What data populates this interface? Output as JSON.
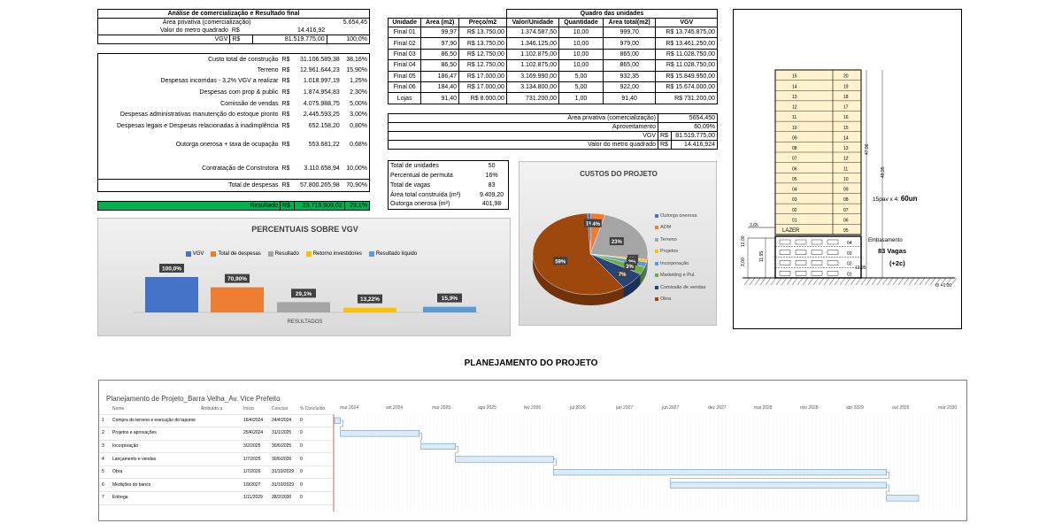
{
  "analysis": {
    "title": "Análise de comercialização e Resultado final",
    "area_label": "Área privativa (comercialização)",
    "area_value": "5.654,45",
    "vm2_label": "Valor do metro quadrado",
    "vm2_cur": "R$",
    "vm2_value": "14.416,92",
    "vgv_label": "VGV",
    "vgv_cur": "R$",
    "vgv_value": "81.519.775,00",
    "vgv_pct": "100,0%",
    "costs": [
      {
        "label": "Custo total de construção",
        "cur": "R$",
        "value": "31.106.589,38",
        "pct": "38,16%"
      },
      {
        "label": "Terreno",
        "cur": "R$",
        "value": "12.961.644,23",
        "pct": "15,90%"
      },
      {
        "label": "Despesas incorridas - 3,2% VGV a realizar",
        "cur": "R$",
        "value": "1.018.997,19",
        "pct": "1,25%"
      },
      {
        "label": "Despesas com prop & public",
        "cur": "R$",
        "value": "1.874.954,83",
        "pct": "2,30%"
      },
      {
        "label": "Comissão de vendas",
        "cur": "R$",
        "value": "4.075.988,75",
        "pct": "5,00%"
      },
      {
        "label": "Despesas administrativas manutenção do estoque pronto",
        "cur": "R$",
        "value": "2.445.593,25",
        "pct": "3,00%"
      },
      {
        "label": "Despesas legais e Despesas relacionadas à inadimplência",
        "cur": "R$",
        "value": "652.158,20",
        "pct": "0,80%"
      }
    ],
    "outorga_label": "Outorga onerosa + taxa de ocupação",
    "outorga_cur": "R$",
    "outorga_value": "553.681,22",
    "outorga_pct": "0,68%",
    "contrat_label": "Contratação de Construtora",
    "contrat_cur": "R$",
    "contrat_value": "3.110.658,94",
    "contrat_pct": "10,00%",
    "total_label": "Total de despesas",
    "total_cur": "R$",
    "total_value": "57.800.265,98",
    "total_pct": "70,90%",
    "result_label": "Resultado",
    "result_cur": "R$",
    "result_value": "23.719.509,02",
    "result_pct": "29,1%",
    "result_color": "#00b050"
  },
  "units": {
    "title": "Quadro das unidades",
    "headers": [
      "Unidade",
      "Área (m2)",
      "Preço/m2",
      "Valor/Unidade",
      "Quantidade",
      "Área total(m2)",
      "VGV"
    ],
    "rows": [
      {
        "unit": "Final 01",
        "area": "99,97",
        "price": "13.750,00",
        "value": "1.374.587,50",
        "qty": "10,00",
        "total_area": "999,70",
        "vgv": "13.745.875,00"
      },
      {
        "unit": "Final 02",
        "area": "97,90",
        "price": "13.750,00",
        "value": "1.346.125,00",
        "qty": "10,00",
        "total_area": "979,00",
        "vgv": "13.461.250,00"
      },
      {
        "unit": "Final 03",
        "area": "86,50",
        "price": "12.750,00",
        "value": "1.102.875,00",
        "qty": "10,00",
        "total_area": "865,00",
        "vgv": "11.028.750,00"
      },
      {
        "unit": "Final 04",
        "area": "86,50",
        "price": "12.750,00",
        "value": "1.102.875,00",
        "qty": "10,00",
        "total_area": "865,00",
        "vgv": "11.028.750,00"
      },
      {
        "unit": "Final 05",
        "area": "186,47",
        "price": "17.000,00",
        "value": "3.169.990,00",
        "qty": "5,00",
        "total_area": "932,35",
        "vgv": "15.849.950,00"
      },
      {
        "unit": "Final 06",
        "area": "184,40",
        "price": "17.000,00",
        "value": "3.134.800,00",
        "qty": "5,00",
        "total_area": "922,00",
        "vgv": "15.674.000,00"
      },
      {
        "unit": "Lojas",
        "area": "91,40",
        "price": "8.000,00",
        "value": "731.200,00",
        "qty": "1,00",
        "total_area": "91,40",
        "vgv": "731.200,00"
      }
    ],
    "cur": "R$",
    "summary": {
      "area_label": "Área privativa (comercialização)",
      "area_value": "5654,450",
      "aprov_label": "Aproveitamento",
      "aprov_value": "60,09%",
      "vgv_label": "VGV",
      "vgv_cur": "R$",
      "vgv_value": "81.519.775,00",
      "vm2_label": "Valor do metro quadrado",
      "vm2_cur": "R$",
      "vm2_value": "14.416,924"
    }
  },
  "stats": [
    {
      "label": "Total de unidades",
      "value": "50"
    },
    {
      "label": "Percentual de permuta",
      "value": "16%"
    },
    {
      "label": "Total de vagas",
      "value": "83"
    },
    {
      "label": "Área total construída (m²)",
      "value": "9.409,20"
    },
    {
      "label": "Outorga onerosa (m²)",
      "value": "401,98"
    }
  ],
  "chart_data": [
    {
      "type": "bar",
      "title": "PERCENTUAIS SOBRE VGV",
      "xlabel": "RESULTADOS",
      "ylim": [
        0,
        100
      ],
      "legend_position": "top",
      "series": [
        {
          "name": "VGV",
          "value": 100.0,
          "label": "100,0%",
          "color": "#4472c4"
        },
        {
          "name": "Total de despesas",
          "value": 70.9,
          "label": "70,90%",
          "color": "#ed7d31"
        },
        {
          "name": "Resultado",
          "value": 29.1,
          "label": "29,1%",
          "color": "#a5a5a5"
        },
        {
          "name": "Retorno investidores",
          "value": 13.22,
          "label": "13,22%",
          "color": "#ffc000"
        },
        {
          "name": "Resultado líquido",
          "value": 15.9,
          "label": "15,9%",
          "color": "#5b9bd5"
        }
      ]
    },
    {
      "type": "pie",
      "title": "CUSTOS DO PROJETO",
      "legend_position": "right",
      "slices": [
        {
          "name": "Outorga onerosa",
          "value": 1,
          "label": "1%",
          "color": "#4472c4"
        },
        {
          "name": "ADM",
          "value": 4,
          "label": "4%",
          "color": "#ed7d31"
        },
        {
          "name": "Terreno",
          "value": 23,
          "label": "23%",
          "color": "#a5a5a5"
        },
        {
          "name": "Projetos",
          "value": 1,
          "label": "1%",
          "color": "#ffc000"
        },
        {
          "name": "Incorporação",
          "value": 2,
          "label": "2%",
          "color": "#5b9bd5"
        },
        {
          "name": "Marketing e Pul.",
          "value": 3,
          "label": "3%",
          "color": "#70ad47"
        },
        {
          "name": "Comissão de vendas",
          "value": 7,
          "label": "7%",
          "color": "#264478"
        },
        {
          "name": "Obra",
          "value": 59,
          "label": "59%",
          "color": "#9e480e"
        }
      ]
    }
  ],
  "building": {
    "floors": [
      {
        "left": "15",
        "right": "20"
      },
      {
        "left": "14",
        "right": "19"
      },
      {
        "left": "13",
        "right": "18"
      },
      {
        "left": "12",
        "right": "17"
      },
      {
        "left": "11",
        "right": "16"
      },
      {
        "left": "10",
        "right": "15"
      },
      {
        "left": "09",
        "right": "14"
      },
      {
        "left": "08",
        "right": "13"
      },
      {
        "left": "07",
        "right": "12"
      },
      {
        "left": "06",
        "right": "11"
      },
      {
        "left": "05",
        "right": "10"
      },
      {
        "left": "04",
        "right": "09"
      },
      {
        "left": "03",
        "right": "08"
      },
      {
        "left": "02",
        "right": "07"
      },
      {
        "left": "01",
        "right": "06"
      },
      {
        "left": "LAZER",
        "right": "05"
      }
    ],
    "garage": [
      "04",
      "03",
      "02",
      "01"
    ],
    "dim_47": "47,96",
    "dim_49": "49,95",
    "dim_3": "3,65",
    "dim_12a": "12,00",
    "dim_12b": "11,95",
    "dim_13": "13,95",
    "dim_300": "3,00",
    "pav_text": "15pav x 4:",
    "pav_count": "60un",
    "emb_text": "Embasamento",
    "vagas_text": "83 Vagas",
    "vagas_extra": "(+2c)",
    "ground_label": "0/ +0.00"
  },
  "planning": {
    "section_title": "PLANEJAMENTO DO PROJETO",
    "project_title": "Planejamento de Projeto_Barra Velha_Av. Vice Prefeito",
    "columns": [
      "Nome",
      "Atribuído a",
      "Início",
      "Concluir",
      "% Concluído"
    ],
    "months": [
      "mar 2024",
      "set 2024",
      "mar 2025",
      "ago 2025",
      "fev 2026",
      "jul 2026",
      "jan 2027",
      "jun 2027",
      "dez 2027",
      "mai 2028",
      "nov 2028",
      "abr 2029",
      "out 2029",
      "mar 2030"
    ],
    "tasks": [
      {
        "id": "1",
        "name": "Compra do terreno e execução do tapume",
        "start": "16/4/2024",
        "end": "24/4/2024",
        "pct": "0",
        "s": 0.0,
        "e": 0.01
      },
      {
        "id": "2",
        "name": "Projetos e aprovações",
        "start": "25/4/2024",
        "end": "31/1/2025",
        "pct": "0",
        "s": 0.01,
        "e": 0.145
      },
      {
        "id": "3",
        "name": "Incorporação",
        "start": "3/2/2025",
        "end": "30/6/2025",
        "pct": "0",
        "s": 0.148,
        "e": 0.207
      },
      {
        "id": "4",
        "name": "Lançamento e vendas",
        "start": "1/7/2025",
        "end": "30/6/2026",
        "pct": "0",
        "s": 0.207,
        "e": 0.375
      },
      {
        "id": "5",
        "name": "Obra",
        "start": "1/7/2026",
        "end": "31/10/2029",
        "pct": "0",
        "s": 0.375,
        "e": 0.945
      },
      {
        "id": "6",
        "name": "Medições do banco",
        "start": "1/9/2027",
        "end": "31/10/2029",
        "pct": "0",
        "s": 0.575,
        "e": 0.945
      },
      {
        "id": "7",
        "name": "Entrega",
        "start": "1/11/2029",
        "end": "28/2/2030",
        "pct": "0",
        "s": 0.945,
        "e": 1.0
      }
    ]
  }
}
